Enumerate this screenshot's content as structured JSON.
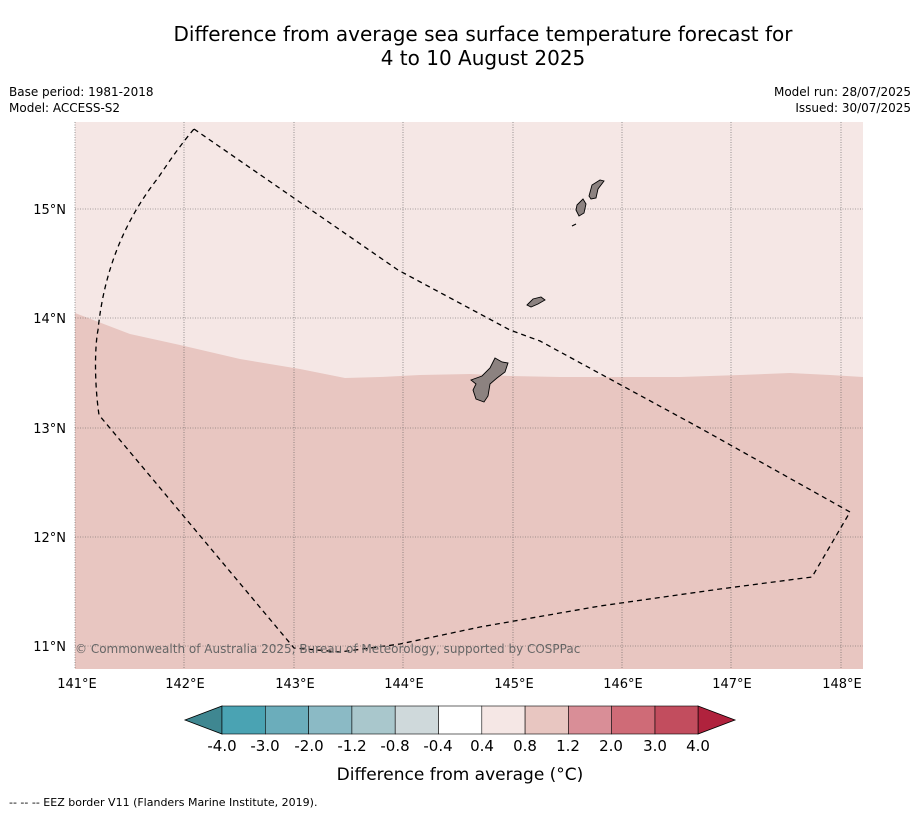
{
  "title_line1": "Difference from average sea surface temperature forecast for",
  "title_line2": "4 to 10 August 2025",
  "meta": {
    "base_period": "Base period: 1981-2018",
    "model": "Model: ACCESS-S2",
    "model_run": "Model run: 28/07/2025",
    "issued": "Issued: 30/07/2025"
  },
  "map": {
    "lat_labels": [
      "15°N",
      "14°N",
      "13°N",
      "12°N",
      "11°N"
    ],
    "lon_labels": [
      "141°E",
      "142°E",
      "143°E",
      "144°E",
      "145°E",
      "146°E",
      "147°E",
      "148°E"
    ],
    "credit": "© Commonwealth of Australia 2025, Bureau of Meteorology, supported by COSPPac",
    "anomaly_north": "0.4 to 0.8",
    "anomaly_south": "0.8 to 1.2"
  },
  "colorbar": {
    "labels": [
      "-4.0",
      "-3.0",
      "-2.0",
      "-1.2",
      "-0.8",
      "-0.4",
      "0.4",
      "0.8",
      "1.2",
      "2.0",
      "3.0",
      "4.0"
    ],
    "colors": [
      "#4aa3b3",
      "#6badbb",
      "#8bbac5",
      "#a9c7cc",
      "#cfd9db",
      "#ffffff",
      "#f5e7e5",
      "#e8c6c1",
      "#d98e97",
      "#cf6b77",
      "#c24d5e"
    ],
    "under_color": "#3f8791",
    "over_color": "#b0223d",
    "title": "Difference from average (°C)"
  },
  "footnote": "--  --  -- EEZ border V11 (Flanders Marine Institute, 2019)."
}
